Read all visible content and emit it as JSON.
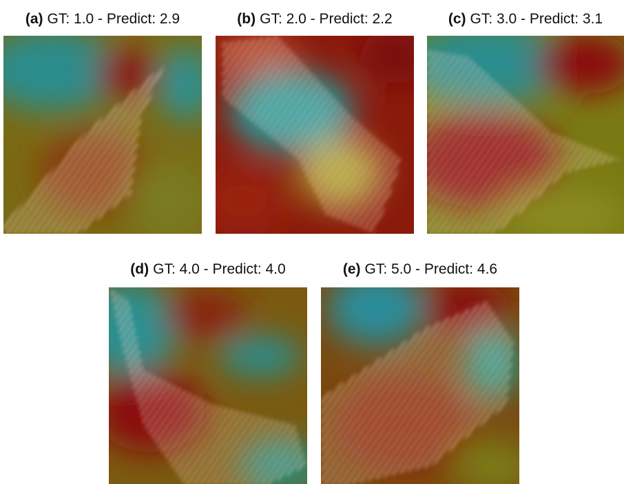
{
  "panels": [
    {
      "label": "(a)",
      "caption": "GT: 1.0 - Predict: 2.9"
    },
    {
      "label": "(b)",
      "caption": "GT: 2.0 - Predict: 2.2"
    },
    {
      "label": "(c)",
      "caption": "GT: 3.0 - Predict: 3.1"
    },
    {
      "label": "(d)",
      "caption": "GT: 4.0 - Predict: 4.0"
    },
    {
      "label": "(e)",
      "caption": "GT: 5.0 - Predict: 4.6"
    }
  ]
}
